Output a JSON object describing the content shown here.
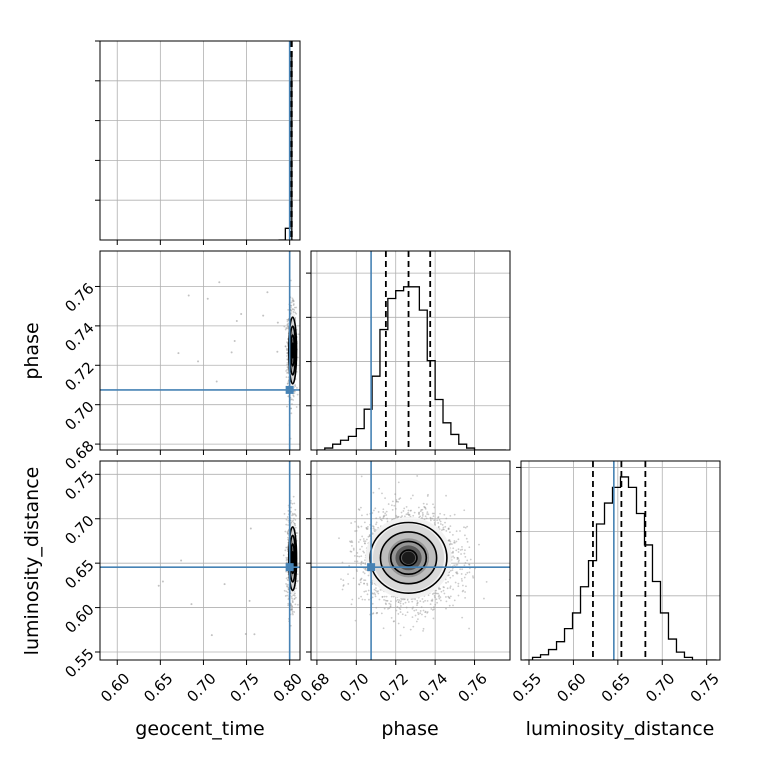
{
  "chart_data": {
    "type": "corner",
    "parameters": [
      "geocent_time",
      "phase",
      "luminosity_distance"
    ],
    "axis_labels": {
      "geocent_time": "geocent_time",
      "phase": "phase",
      "luminosity_distance": "luminosity_distance"
    },
    "ranges": {
      "geocent_time": [
        0.58,
        0.812
      ],
      "phase": [
        0.677,
        0.778
      ],
      "luminosity_distance": [
        0.541,
        0.765
      ]
    },
    "ticks": {
      "geocent_time": [
        0.6,
        0.65,
        0.7,
        0.75,
        0.8
      ],
      "phase": [
        0.68,
        0.7,
        0.72,
        0.74,
        0.76
      ],
      "luminosity_distance": [
        0.55,
        0.6,
        0.65,
        0.7,
        0.75
      ]
    },
    "tick_labels": {
      "geocent_time": [
        "0.60",
        "0.65",
        "0.70",
        "0.75",
        "0.80"
      ],
      "phase": [
        "0.68",
        "0.70",
        "0.72",
        "0.74",
        "0.76"
      ],
      "luminosity_distance": [
        "0.55",
        "0.60",
        "0.65",
        "0.70",
        "0.75"
      ]
    },
    "truths": {
      "geocent_time": 0.8,
      "phase": 0.7075,
      "luminosity_distance": 0.6455,
      "color": "#4682b4"
    },
    "quantiles": {
      "geocent_time": [
        0.8015,
        0.802,
        0.8025
      ],
      "phase": [
        0.715,
        0.7265,
        0.7375
      ],
      "luminosity_distance": [
        0.622,
        0.654,
        0.681
      ]
    },
    "histograms": {
      "geocent_time": {
        "edges": [
          0.787,
          0.791,
          0.795,
          0.799,
          0.8005,
          0.8015,
          0.8025,
          0.8035
        ],
        "counts": [
          0,
          0,
          6,
          6,
          95,
          95,
          0
        ]
      },
      "phase": {
        "edges": [
          0.68,
          0.684,
          0.688,
          0.692,
          0.696,
          0.7,
          0.704,
          0.708,
          0.712,
          0.716,
          0.72,
          0.724,
          0.728,
          0.732,
          0.736,
          0.74,
          0.744,
          0.748,
          0.752,
          0.756,
          0.76,
          0.764,
          0.768,
          0.772,
          0.776
        ],
        "counts": [
          0,
          1,
          3,
          5,
          7,
          11,
          21,
          38,
          62,
          78,
          82,
          84,
          84,
          72,
          46,
          26,
          14,
          8,
          3,
          1,
          0,
          0,
          0,
          0
        ]
      },
      "luminosity_distance": {
        "edges": [
          0.545,
          0.554,
          0.563,
          0.572,
          0.581,
          0.59,
          0.599,
          0.608,
          0.617,
          0.626,
          0.635,
          0.644,
          0.653,
          0.662,
          0.671,
          0.68,
          0.689,
          0.698,
          0.707,
          0.716,
          0.725,
          0.734,
          0.743,
          0.752,
          0.761
        ],
        "counts": [
          0,
          1,
          2,
          4,
          7,
          12,
          18,
          28,
          38,
          52,
          60,
          66,
          70,
          66,
          56,
          44,
          30,
          18,
          8,
          3,
          1,
          0,
          0,
          0
        ]
      }
    },
    "pair_centers": {
      "geocent_time__phase": [
        0.802,
        0.727
      ],
      "geocent_time__luminosity_distance": [
        0.802,
        0.655
      ],
      "phase__luminosity_distance": [
        0.726,
        0.655
      ]
    },
    "density": {
      "contour_levels": [
        "1 sigma",
        "1.5 sigma",
        "2 sigma"
      ],
      "scatter": "light gray sample points",
      "fill": "grayscale"
    },
    "grid": true,
    "legend": "none"
  },
  "colors": {
    "truth": "#4682b4",
    "histogram": "#000000",
    "grid": "#b0b0b0",
    "scatter": "#9a9a9a"
  }
}
